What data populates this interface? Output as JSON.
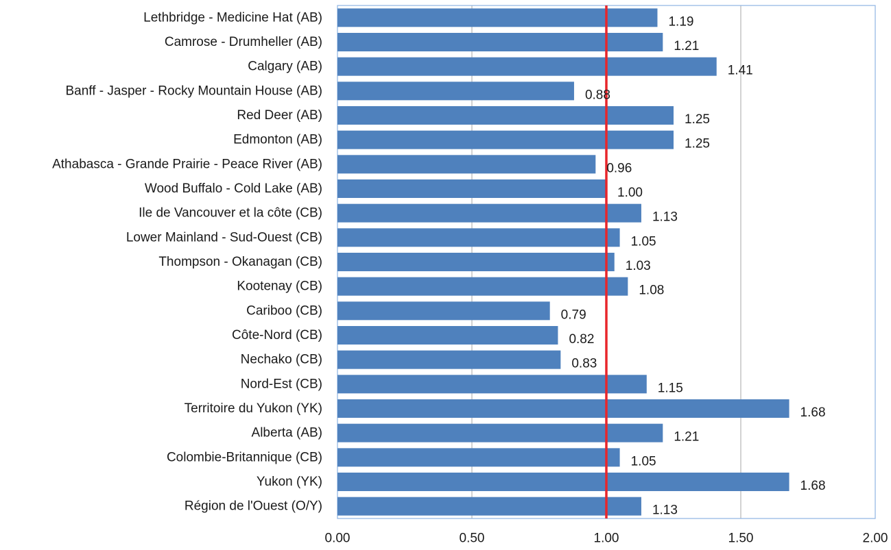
{
  "chart_data": {
    "type": "bar",
    "orientation": "horizontal",
    "categories": [
      "Lethbridge - Medicine Hat (AB)",
      "Camrose - Drumheller (AB)",
      "Calgary (AB)",
      "Banff - Jasper - Rocky Mountain House (AB)",
      "Red Deer (AB)",
      "Edmonton (AB)",
      "Athabasca - Grande Prairie - Peace River (AB)",
      "Wood Buffalo - Cold Lake (AB)",
      "Ile de Vancouver et la côte (CB)",
      "Lower Mainland - Sud-Ouest (CB)",
      "Thompson - Okanagan (CB)",
      "Kootenay (CB)",
      "Cariboo (CB)",
      "Côte-Nord (CB)",
      "Nechako (CB)",
      "Nord-Est (CB)",
      "Territoire du Yukon (YK)",
      "Alberta (AB)",
      "Colombie-Britannique (CB)",
      "Yukon (YK)",
      "Région de l'Ouest (O/Y)"
    ],
    "values": [
      1.19,
      1.21,
      1.41,
      0.88,
      1.25,
      1.25,
      0.96,
      1.0,
      1.13,
      1.05,
      1.03,
      1.08,
      0.79,
      0.82,
      0.83,
      1.15,
      1.68,
      1.21,
      1.05,
      1.68,
      1.13
    ],
    "value_labels": [
      "1.19",
      "1.21",
      "1.41",
      "0.88",
      "1.25",
      "1.25",
      "0.96",
      "1.00",
      "1.13",
      "1.05",
      "1.03",
      "1.08",
      "0.79",
      "0.82",
      "0.83",
      "1.15",
      "1.68",
      "1.21",
      "1.05",
      "1.68",
      "1.13"
    ],
    "xlim": [
      0,
      2
    ],
    "xticks": [
      0,
      0.5,
      1,
      1.5,
      2
    ],
    "xtick_labels": [
      "0.00",
      "0.50",
      "1.00",
      "1.50",
      "2.00"
    ],
    "reference_line": 1.0,
    "grid": "vertical",
    "legend": "none",
    "title": "",
    "xlabel": "",
    "ylabel": "",
    "colors": {
      "bar": "#4F81BD",
      "reference_line": "#E8262B",
      "grid": "#A6A6A6",
      "frame": "#8EB4E3",
      "text": "#1A1A1A"
    }
  }
}
